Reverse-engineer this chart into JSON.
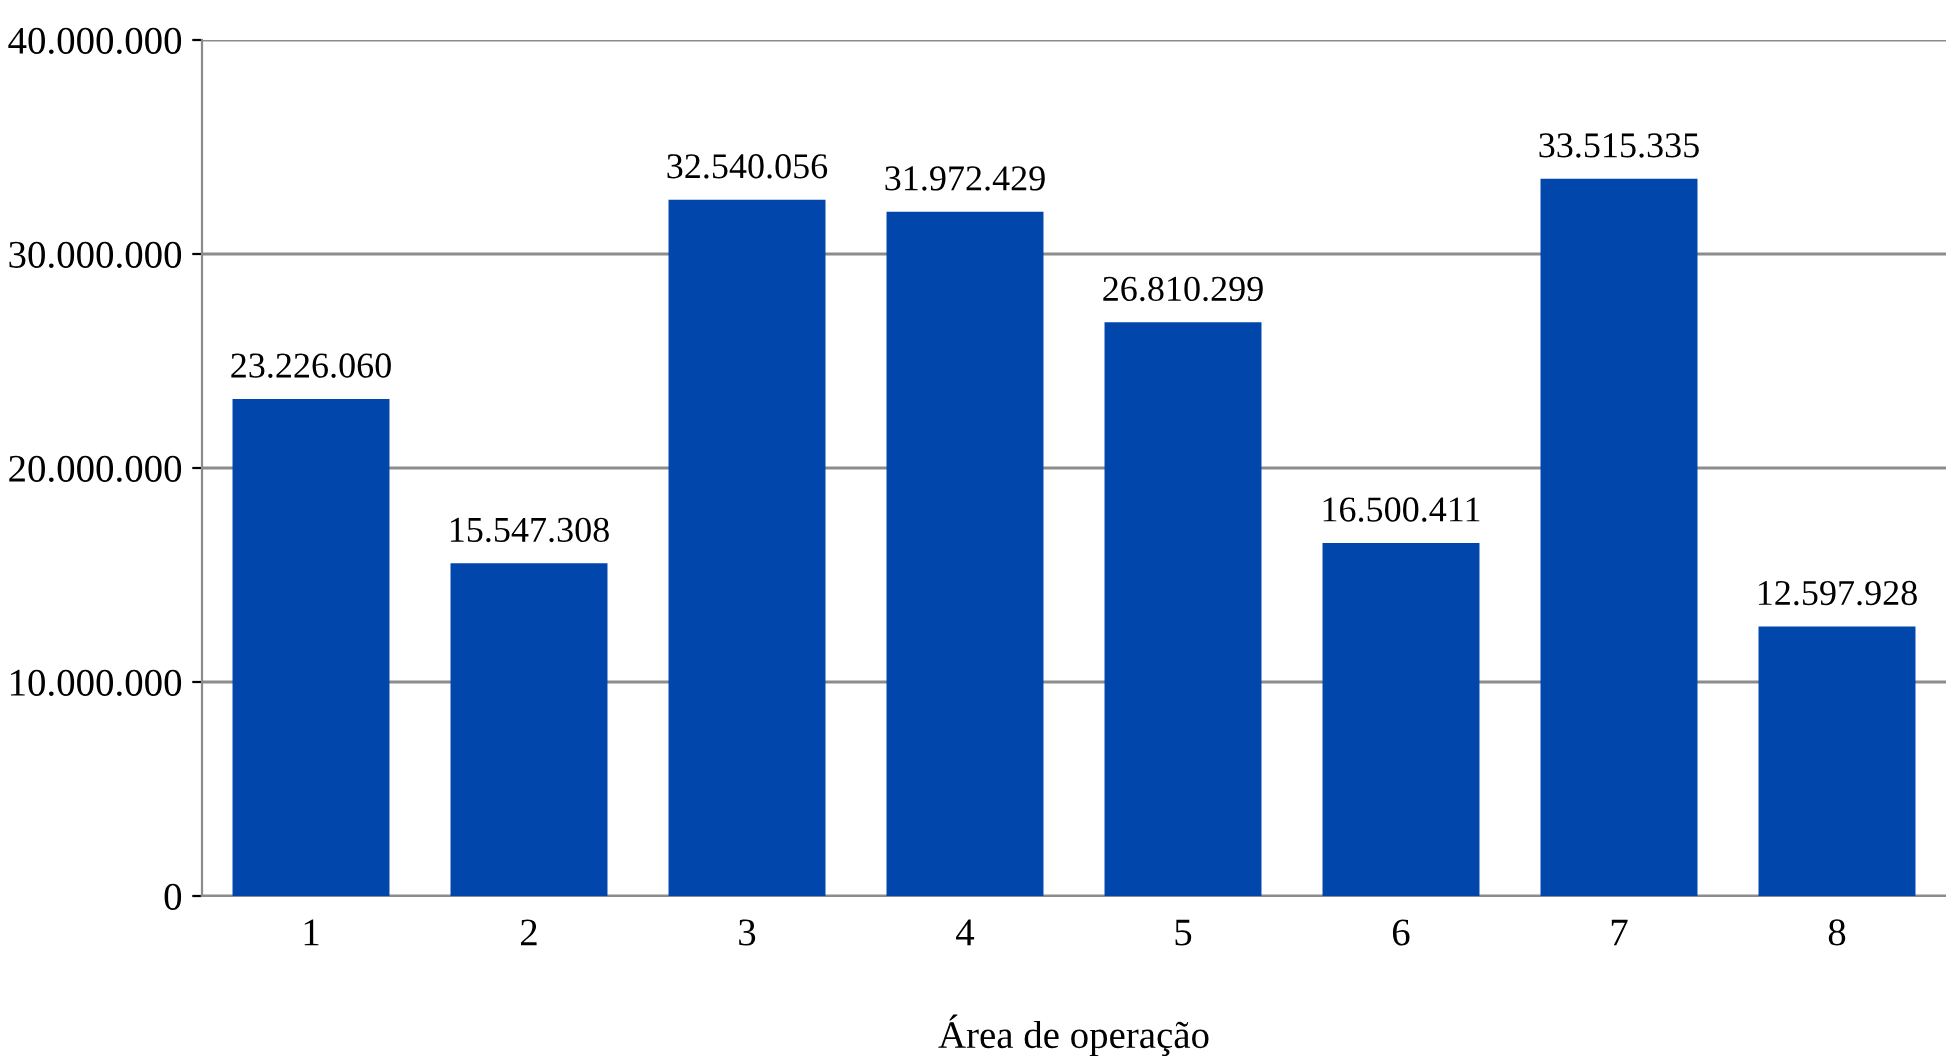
{
  "chart_data": {
    "type": "bar",
    "xlabel": "Área de operação",
    "categories": [
      "1",
      "2",
      "3",
      "4",
      "5",
      "6",
      "7",
      "8"
    ],
    "values": [
      23226060,
      15547308,
      32540056,
      31972429,
      26810299,
      16500411,
      33515335,
      12597928
    ],
    "value_labels": [
      "23.226.060",
      "15.547.308",
      "32.540.056",
      "31.972.429",
      "26.810.299",
      "16.500.411",
      "33.515.335",
      "12.597.928"
    ],
    "color": "#0046ab",
    "ylim": [
      0,
      40000000
    ],
    "yticks": [
      {
        "value": 0,
        "label": "0"
      },
      {
        "value": 10000000,
        "label": "10.000.000"
      },
      {
        "value": 20000000,
        "label": "20.000.000"
      },
      {
        "value": 30000000,
        "label": "30.000.000"
      },
      {
        "value": 40000000,
        "label": "40.000.000"
      }
    ],
    "grid": "y",
    "legend": false
  }
}
